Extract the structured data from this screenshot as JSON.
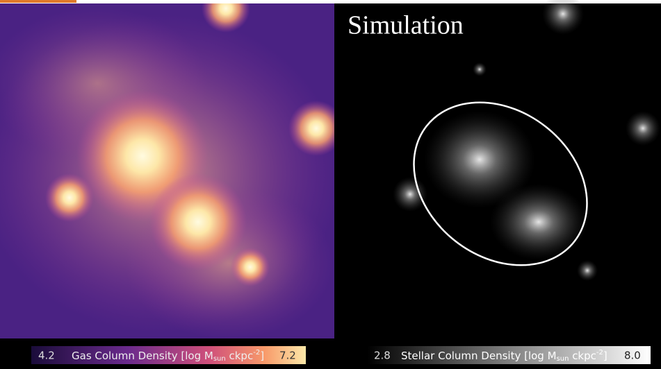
{
  "title": "Simulation",
  "gas_colorbar": {
    "min": "4.2",
    "label": "Gas Column Density [log M",
    "sub": "sun",
    "unit": " ckpc",
    "sup": "-2",
    "close": "]",
    "max": "7.2"
  },
  "stellar_colorbar": {
    "min": "2.8",
    "label": "Stellar Column Density [log M",
    "sub": "sun",
    "unit": " ckpc",
    "sup": "-2",
    "close": "]",
    "max": "8.0"
  }
}
